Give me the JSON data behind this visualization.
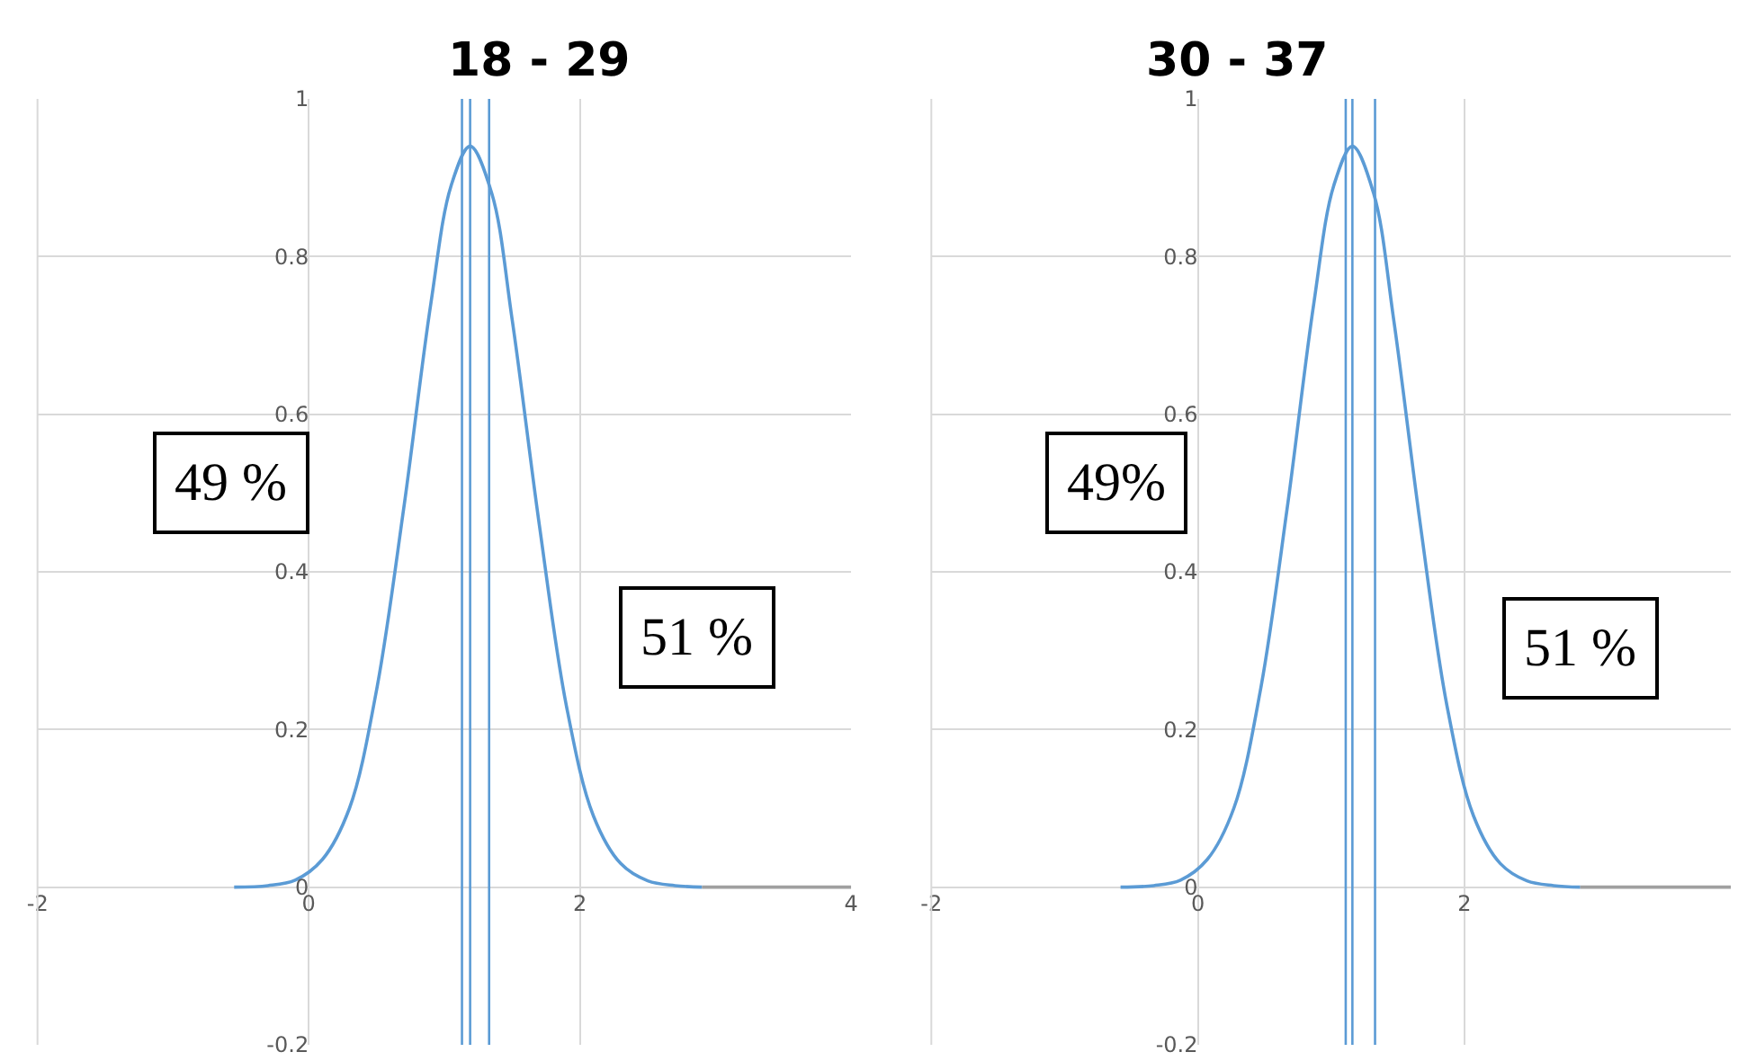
{
  "chart_data": [
    {
      "type": "line",
      "title": "18 - 29",
      "xlim": [
        -2,
        4
      ],
      "xticks": [
        -2,
        0,
        2,
        4
      ],
      "ylim": [
        -0.2,
        1
      ],
      "yticks": [
        -0.2,
        0,
        0.2,
        0.4,
        0.6,
        0.8,
        1
      ],
      "grid": true,
      "marker": "none",
      "series": [
        {
          "color": "#5b9bd5",
          "x": [
            -0.55,
            -0.3,
            -0.1,
            0.1,
            0.3,
            0.5,
            0.7,
            0.9,
            1.05,
            1.19,
            1.35,
            1.5,
            1.7,
            1.9,
            2.1,
            2.3,
            2.5,
            2.7,
            2.9
          ],
          "values": [
            0.0,
            0.002,
            0.009,
            0.035,
            0.1,
            0.25,
            0.48,
            0.74,
            0.89,
            0.94,
            0.88,
            0.72,
            0.46,
            0.23,
            0.09,
            0.03,
            0.008,
            0.002,
            0.0
          ]
        },
        {
          "color": "#a0a0a0",
          "x": [
            2.9,
            4
          ],
          "values": [
            0,
            0
          ]
        }
      ],
      "ref_lines": [
        {
          "axis": "x",
          "value": 1.13,
          "color": "#5b9bd5"
        },
        {
          "axis": "x",
          "value": 1.19,
          "color": "#5b9bd5"
        },
        {
          "axis": "x",
          "value": 1.33,
          "color": "#5b9bd5"
        }
      ],
      "annotations": [
        "49 %",
        "51 %"
      ]
    },
    {
      "type": "line",
      "title": "30 - 37",
      "xlim": [
        -2,
        4
      ],
      "xticks": [
        -2,
        0,
        2
      ],
      "ylim": [
        -0.2,
        1
      ],
      "yticks": [
        -0.2,
        0,
        0.2,
        0.4,
        0.6,
        0.8,
        1
      ],
      "grid": true,
      "marker": "none",
      "series": [
        {
          "color": "#5b9bd5",
          "x": [
            -0.58,
            -0.33,
            -0.13,
            0.07,
            0.27,
            0.47,
            0.67,
            0.87,
            1.02,
            1.16,
            1.32,
            1.47,
            1.67,
            1.87,
            2.07,
            2.27,
            2.47,
            2.67,
            2.87
          ],
          "values": [
            0.0,
            0.002,
            0.009,
            0.035,
            0.1,
            0.25,
            0.48,
            0.74,
            0.89,
            0.94,
            0.88,
            0.72,
            0.46,
            0.23,
            0.09,
            0.03,
            0.008,
            0.002,
            0.0
          ]
        },
        {
          "color": "#a0a0a0",
          "x": [
            2.87,
            4
          ],
          "values": [
            0,
            0
          ]
        }
      ],
      "ref_lines": [
        {
          "axis": "x",
          "value": 1.11,
          "color": "#5b9bd5"
        },
        {
          "axis": "x",
          "value": 1.16,
          "color": "#5b9bd5"
        },
        {
          "axis": "x",
          "value": 1.33,
          "color": "#5b9bd5"
        }
      ],
      "annotations": [
        "49%",
        "51 %"
      ]
    }
  ]
}
